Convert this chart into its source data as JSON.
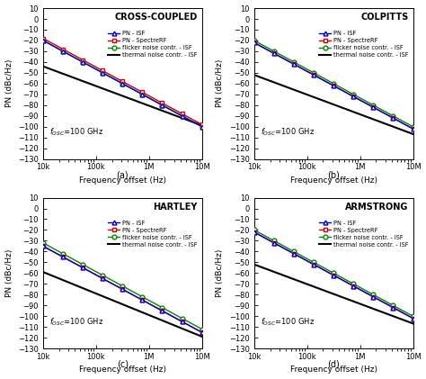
{
  "subplots": [
    {
      "title": "CROSS-COUPLED",
      "label": "(a)",
      "pn_a": -20,
      "pn_slope": -26.7,
      "spectre_a": -18,
      "spectre_slope": -26.7,
      "flicker_a": -20,
      "flicker_slope": -26.7,
      "thermal_a": -44,
      "thermal_slope": -18.3
    },
    {
      "title": "COLPITTS",
      "label": "(b)",
      "pn_a": -22,
      "pn_slope": -26.7,
      "spectre_a": -22,
      "spectre_slope": -26.7,
      "flicker_a": -20,
      "flicker_slope": -26.7,
      "thermal_a": -52,
      "thermal_slope": -18.3
    },
    {
      "title": "HARTLEY",
      "label": "(c)",
      "pn_a": -35,
      "pn_slope": -26.7,
      "spectre_a": -35,
      "spectre_slope": -26.7,
      "flicker_a": -32,
      "flicker_slope": -26.7,
      "thermal_a": -59,
      "thermal_slope": -20.0
    },
    {
      "title": "ARMSTRONG",
      "label": "(d)",
      "pn_a": -22,
      "pn_slope": -26.7,
      "spectre_a": -22,
      "spectre_slope": -26.7,
      "flicker_a": -20,
      "flicker_slope": -26.7,
      "thermal_a": -52,
      "thermal_slope": -18.3
    }
  ],
  "xmin": 10000,
  "xmax": 10000000,
  "ymin": -130,
  "ymax": 10,
  "xlabel": "Frequency offset (Hz)",
  "ylabel": "PN (dBc/Hz)",
  "fosc_label": "$f_{OSC}$=100 GHz",
  "legend_labels": [
    "PN - ISF",
    "PN - SpectreRF",
    "flicker noise contr. - ISF",
    "thermal noise contr. - ISF"
  ],
  "colors_blue": "#0000cc",
  "colors_red": "#cc0000",
  "colors_green": "#008800",
  "colors_black": "#000000",
  "sublabels": [
    "(a)",
    "(b)",
    "(c)",
    "(d)"
  ],
  "background_color": "#ffffff",
  "n_markers": 9,
  "marker_size": 3.5,
  "line_width": 1.0,
  "thermal_lw": 1.5,
  "tick_fontsize": 6,
  "label_fontsize": 6.5,
  "legend_fontsize": 4.8,
  "title_fontsize": 7.0,
  "fosc_fontsize": 6.0
}
